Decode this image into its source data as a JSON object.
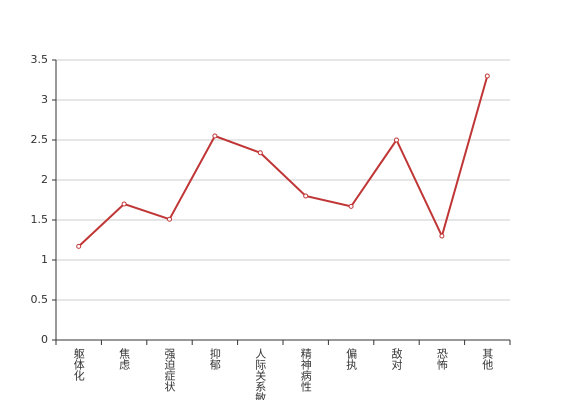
{
  "chart_data": {
    "type": "line",
    "categories": [
      "躯体化",
      "焦虑",
      "强迫症状",
      "抑郁",
      "人际关系敏感",
      "精神病性",
      "偏执",
      "敌对",
      "恐怖",
      "其他"
    ],
    "series": [
      {
        "color": "#c03535",
        "values": [
          1.17,
          1.7,
          1.51,
          2.55,
          2.34,
          1.8,
          1.67,
          2.5,
          1.3,
          3.3
        ]
      }
    ],
    "ylim": [
      0,
      3.5
    ],
    "yticks": [
      0,
      0.5,
      1,
      1.5,
      2,
      2.5,
      3,
      3.5
    ],
    "grid": true
  }
}
